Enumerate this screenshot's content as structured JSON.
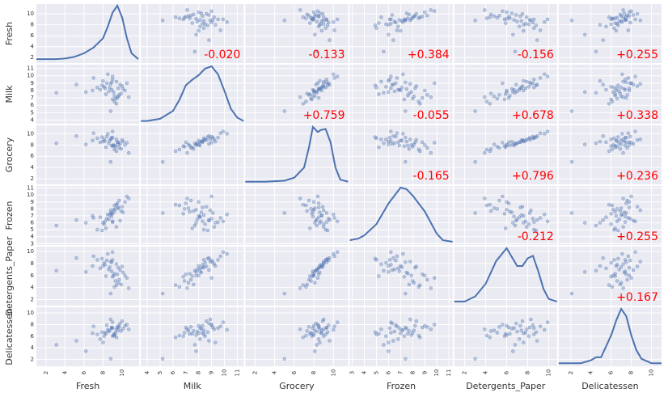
{
  "chart_data": {
    "type": "scatter_matrix",
    "grid": true,
    "point_color": "#4c72b0",
    "kde_color": "#4c72b0",
    "annotation_color": "#ff0000",
    "variables": [
      {
        "name": "Fresh",
        "lim": [
          1,
          11.8
        ],
        "ticks": [
          2,
          4,
          6,
          8,
          10
        ],
        "values": [
          9.4,
          8.9,
          8.8,
          9.5,
          10.0,
          9.0,
          8.0,
          8.9,
          8.2,
          9.8,
          9.0,
          8.3,
          6.9,
          9.6,
          7.4,
          10.3,
          9.9,
          8.5,
          7.9,
          10.5,
          9.2,
          8.6,
          5.2,
          9.7,
          8.1,
          9.3,
          10.1,
          7.0,
          9.1,
          8.7,
          3.1,
          9.4,
          8.4,
          10.7,
          7.7,
          9.2,
          6.2,
          9.0,
          8.8,
          9.6
        ],
        "kde": {
          "x": [
            1,
            2,
            3,
            4,
            5,
            6,
            7,
            8,
            8.5,
            9,
            9.5,
            10,
            10.5,
            11,
            11.7
          ],
          "y": [
            0.02,
            0.02,
            0.02,
            0.025,
            0.04,
            0.07,
            0.12,
            0.2,
            0.3,
            0.42,
            0.48,
            0.38,
            0.2,
            0.07,
            0.02
          ]
        }
      },
      {
        "name": "Milk",
        "lim": [
          3.5,
          11.5
        ],
        "ticks": [
          4,
          5,
          6,
          7,
          8,
          9,
          10,
          11
        ],
        "values": [
          9.2,
          9.1,
          8.9,
          7.0,
          8.6,
          9.5,
          9.3,
          8.1,
          8.3,
          8.8,
          6.8,
          7.5,
          8.0,
          7.2,
          8.4,
          8.0,
          7.6,
          10.2,
          8.7,
          9.0,
          6.5,
          7.9,
          8.8,
          7.4,
          8.5,
          6.9,
          8.2,
          9.7,
          7.8,
          8.4,
          7.7,
          6.2,
          9.0,
          7.1,
          8.1,
          7.3,
          7.8,
          9.9,
          5.2,
          8.3
        ],
        "kde": {
          "x": [
            3.5,
            4,
            5,
            6,
            6.5,
            7,
            7.5,
            8,
            8.5,
            9,
            9.5,
            10,
            10.5,
            11,
            11.5
          ],
          "y": [
            0.01,
            0.01,
            0.03,
            0.1,
            0.2,
            0.33,
            0.38,
            0.42,
            0.48,
            0.5,
            0.43,
            0.28,
            0.12,
            0.04,
            0.01
          ]
        }
      },
      {
        "name": "Grocery",
        "lim": [
          1,
          11.5
        ],
        "ticks": [
          2,
          4,
          6,
          8,
          10
        ],
        "values": [
          9.0,
          9.3,
          9.0,
          8.5,
          8.9,
          9.3,
          8.6,
          7.9,
          8.7,
          8.2,
          7.8,
          7.6,
          8.8,
          8.1,
          9.2,
          8.0,
          7.3,
          10.0,
          9.4,
          8.4,
          7.2,
          8.3,
          9.6,
          7.5,
          9.0,
          7.7,
          8.6,
          10.1,
          8.0,
          8.8,
          8.3,
          6.9,
          9.5,
          6.6,
          8.5,
          7.9,
          8.1,
          10.4,
          5.0,
          8.5
        ],
        "kde": {
          "x": [
            1,
            3,
            5,
            6,
            7,
            7.5,
            7.9,
            8.4,
            8.7,
            9.2,
            9.7,
            10.2,
            10.7,
            11.5
          ],
          "y": [
            0.01,
            0.01,
            0.02,
            0.05,
            0.15,
            0.35,
            0.55,
            0.5,
            0.52,
            0.53,
            0.4,
            0.15,
            0.03,
            0.01
          ]
        }
      },
      {
        "name": "Frozen",
        "lim": [
          2.8,
          11.3
        ],
        "ticks": [
          3,
          4,
          5,
          6,
          7,
          8,
          9,
          10,
          11
        ],
        "values": [
          5.4,
          7.4,
          7.8,
          8.8,
          8.3,
          6.1,
          6.0,
          6.9,
          6.2,
          6.3,
          7.3,
          5.2,
          7.0,
          8.1,
          5.0,
          9.0,
          7.7,
          7.2,
          4.9,
          9.8,
          8.5,
          6.5,
          6.4,
          9.2,
          5.8,
          8.0,
          7.5,
          6.7,
          7.9,
          7.1,
          5.6,
          8.6,
          6.6,
          9.5,
          6.8,
          7.6,
          6.0,
          6.2,
          7.4,
          8.2
        ],
        "kde": {
          "x": [
            2.8,
            3.5,
            4,
            5,
            6,
            7,
            7.5,
            8,
            9,
            10,
            10.5,
            11.3
          ],
          "y": [
            0.02,
            0.03,
            0.05,
            0.12,
            0.25,
            0.35,
            0.34,
            0.3,
            0.2,
            0.06,
            0.02,
            0.01
          ]
        }
      },
      {
        "name": "Detergents_Paper",
        "lim": [
          1,
          10.8
        ],
        "ticks": [
          2,
          4,
          6,
          8,
          10
        ],
        "values": [
          7.9,
          8.2,
          8.3,
          6.2,
          7.5,
          8.6,
          7.6,
          6.7,
          7.8,
          6.9,
          5.8,
          5.9,
          7.6,
          4.8,
          8.6,
          6.0,
          4.5,
          9.6,
          8.8,
          5.6,
          4.1,
          7.0,
          8.9,
          5.3,
          8.1,
          5.1,
          6.5,
          9.2,
          6.0,
          7.4,
          6.8,
          4.4,
          8.5,
          3.9,
          7.2,
          6.3,
          6.6,
          9.9,
          3.0,
          7.3
        ],
        "kde": {
          "x": [
            1,
            2,
            3,
            4,
            5,
            6,
            7,
            7.5,
            8,
            8.5,
            9,
            9.5,
            10,
            10.8
          ],
          "y": [
            0.01,
            0.01,
            0.03,
            0.08,
            0.17,
            0.22,
            0.15,
            0.15,
            0.18,
            0.19,
            0.13,
            0.06,
            0.02,
            0.01
          ]
        }
      },
      {
        "name": "Delicatessen",
        "lim": [
          0.8,
          11
        ],
        "ticks": [
          2,
          4,
          6,
          8,
          10
        ],
        "values": [
          7.2,
          7.5,
          8.9,
          7.5,
          8.6,
          7.4,
          4.9,
          7.4,
          6.6,
          8.2,
          6.0,
          6.4,
          6.5,
          7.0,
          6.3,
          7.8,
          6.9,
          7.1,
          6.7,
          8.0,
          6.1,
          6.8,
          5.2,
          7.6,
          6.0,
          6.6,
          7.3,
          7.7,
          6.2,
          7.0,
          4.5,
          5.8,
          7.9,
          7.2,
          5.5,
          6.4,
          3.4,
          8.4,
          2.1,
          7.8
        ],
        "kde": {
          "x": [
            0.8,
            2,
            3,
            4,
            4.5,
            5,
            6,
            6.5,
            7,
            7.5,
            8,
            8.5,
            9,
            10,
            11
          ],
          "y": [
            0.01,
            0.01,
            0.01,
            0.03,
            0.05,
            0.05,
            0.2,
            0.3,
            0.38,
            0.33,
            0.2,
            0.1,
            0.04,
            0.01,
            0.01
          ]
        }
      }
    ],
    "annotations": [
      {
        "x_var": "Milk",
        "y_var": "Fresh",
        "value": -0.02,
        "label": "-0.020"
      },
      {
        "x_var": "Grocery",
        "y_var": "Fresh",
        "value": -0.133,
        "label": "-0.133"
      },
      {
        "x_var": "Frozen",
        "y_var": "Fresh",
        "value": 0.384,
        "label": "+0.384"
      },
      {
        "x_var": "Detergents_Paper",
        "y_var": "Fresh",
        "value": -0.156,
        "label": "-0.156"
      },
      {
        "x_var": "Delicatessen",
        "y_var": "Fresh",
        "value": 0.255,
        "label": "+0.255"
      },
      {
        "x_var": "Grocery",
        "y_var": "Milk",
        "value": 0.759,
        "label": "+0.759"
      },
      {
        "x_var": "Frozen",
        "y_var": "Milk",
        "value": -0.055,
        "label": "-0.055"
      },
      {
        "x_var": "Detergents_Paper",
        "y_var": "Milk",
        "value": 0.678,
        "label": "+0.678"
      },
      {
        "x_var": "Delicatessen",
        "y_var": "Milk",
        "value": 0.338,
        "label": "+0.338"
      },
      {
        "x_var": "Frozen",
        "y_var": "Grocery",
        "value": -0.165,
        "label": "-0.165"
      },
      {
        "x_var": "Detergents_Paper",
        "y_var": "Grocery",
        "value": 0.796,
        "label": "+0.796"
      },
      {
        "x_var": "Delicatessen",
        "y_var": "Grocery",
        "value": 0.236,
        "label": "+0.236"
      },
      {
        "x_var": "Detergents_Paper",
        "y_var": "Frozen",
        "value": -0.212,
        "label": "-0.212"
      },
      {
        "x_var": "Delicatessen",
        "y_var": "Frozen",
        "value": 0.255,
        "label": "+0.255"
      },
      {
        "x_var": "Delicatessen",
        "y_var": "Detergents_Paper",
        "value": 0.167,
        "label": "+0.167"
      }
    ]
  }
}
